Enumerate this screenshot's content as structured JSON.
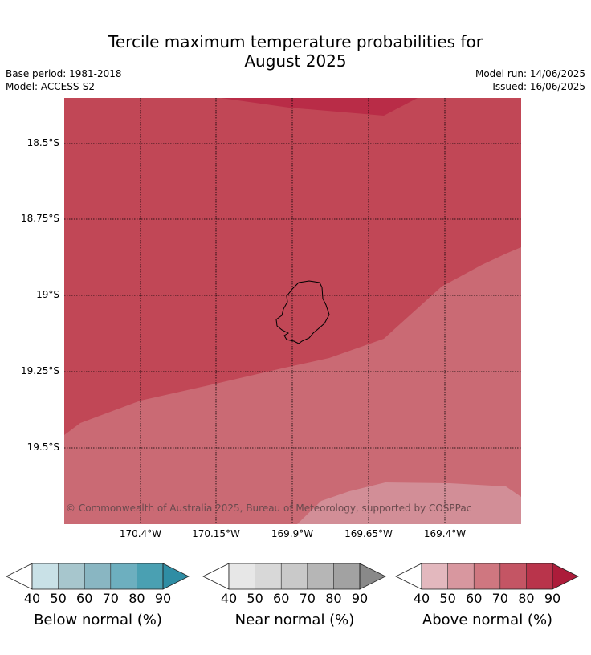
{
  "title": {
    "line1": "Tercile maximum temperature probabilities for",
    "line2": "August 2025"
  },
  "meta": {
    "base_period": "Base period: 1981-2018",
    "model": "Model: ACCESS-S2",
    "model_run": "Model run: 14/06/2025",
    "issued": "Issued: 16/06/2025"
  },
  "map": {
    "latitudes": [
      "18.5°S",
      "18.75°S",
      "19°S",
      "19.25°S",
      "19.5°S"
    ],
    "longitudes": [
      "170.4°W",
      "170.15°W",
      "169.9°W",
      "169.65°W",
      "169.4°W"
    ],
    "copyright": "© Commonwealth of Australia 2025, Bureau of Meteorology, supported by COSPPac",
    "colors": {
      "above_90": "#b92c47",
      "above_80": "#c14756",
      "above_70": "#ca6a74",
      "above_60": "#d28e97"
    }
  },
  "colorbars": [
    {
      "label": "Below normal (%)",
      "ticks": [
        "40",
        "50",
        "60",
        "70",
        "80",
        "90"
      ],
      "colors": [
        "#c9e1e7",
        "#a7c6cd",
        "#89b6c2",
        "#6dafbf",
        "#4aa0b2",
        "#2f8da4"
      ]
    },
    {
      "label": "Near normal (%)",
      "ticks": [
        "40",
        "50",
        "60",
        "70",
        "80",
        "90"
      ],
      "colors": [
        "#e7e7e7",
        "#d8d8d8",
        "#c9c9c9",
        "#b6b6b6",
        "#a2a2a2",
        "#898989"
      ]
    },
    {
      "label": "Above normal (%)",
      "ticks": [
        "40",
        "50",
        "60",
        "70",
        "80",
        "90"
      ],
      "colors": [
        "#e3b8be",
        "#d8979f",
        "#cf7780",
        "#c45564",
        "#b9344b",
        "#ac1c3a"
      ]
    }
  ]
}
